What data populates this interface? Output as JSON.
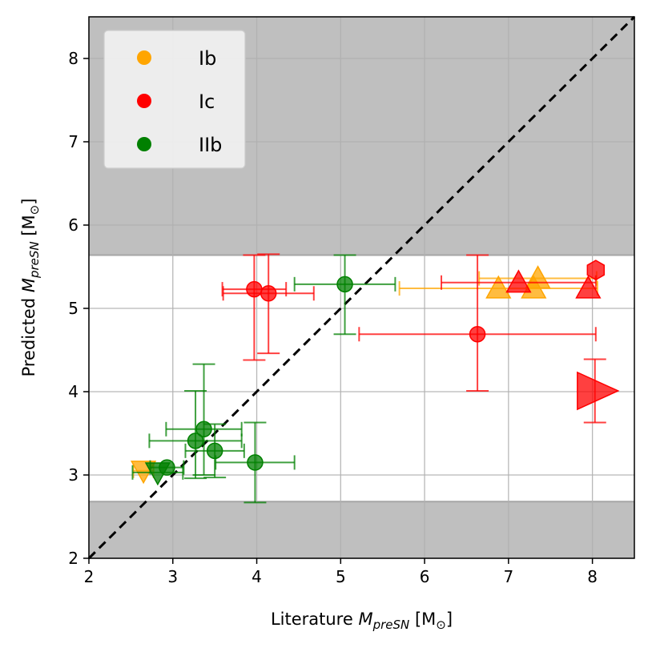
{
  "chart_data": {
    "type": "scatter",
    "title": "",
    "xlabel": {
      "prefix": "Literature ",
      "symbol": "M",
      "sub": "preSN",
      "unit": " [M",
      "unit_sub": "⊙",
      "unit_close": "]"
    },
    "ylabel": {
      "prefix": "Predicted ",
      "symbol": "M",
      "sub": "preSN",
      "unit": " [M",
      "unit_sub": "⊙",
      "unit_close": "]"
    },
    "xlim": [
      2,
      8.5
    ],
    "ylim": [
      2,
      8.5
    ],
    "xticks": [
      "2",
      "3",
      "4",
      "5",
      "6",
      "7",
      "8"
    ],
    "yticks": [
      "2",
      "3",
      "4",
      "5",
      "6",
      "7",
      "8"
    ],
    "grid": true,
    "legend_position": "top-left",
    "excluded_bands": [
      [
        2.0,
        2.68
      ],
      [
        5.64,
        8.5
      ]
    ],
    "identity_line": true,
    "series": [
      {
        "name": "Ib",
        "color": "#FFA500",
        "points": [
          {
            "x": 2.65,
            "y": 3.05,
            "marker": "triangle-down",
            "xerr": [
              0.12,
              0.12
            ],
            "yerr": [
              0,
              0
            ]
          },
          {
            "x": 6.88,
            "y": 5.24,
            "marker": "triangle-up",
            "xerr": [
              1.18,
              1.18
            ],
            "yerr": [
              0,
              0
            ]
          },
          {
            "x": 7.35,
            "y": 5.36,
            "marker": "triangle-up",
            "xerr": [
              0.7,
              0.7
            ],
            "yerr": [
              0,
              0
            ]
          },
          {
            "x": 7.3,
            "y": 5.24,
            "marker": "triangle-up",
            "xerr": [
              0,
              0
            ],
            "yerr": [
              0,
              0
            ]
          }
        ]
      },
      {
        "name": "Ic",
        "color": "#FF0000",
        "points": [
          {
            "x": 3.97,
            "y": 5.23,
            "marker": "circle",
            "xerr": [
              0.38,
              0.38
            ],
            "yerr": [
              0.85,
              0.41
            ]
          },
          {
            "x": 4.14,
            "y": 5.18,
            "marker": "circle",
            "xerr": [
              0.54,
              0.54
            ],
            "yerr": [
              0.72,
              0.47
            ]
          },
          {
            "x": 6.63,
            "y": 4.69,
            "marker": "circle",
            "xerr": [
              1.41,
              1.41
            ],
            "yerr": [
              0.68,
              0.95
            ]
          },
          {
            "x": 7.12,
            "y": 5.31,
            "marker": "triangle-up",
            "xerr": [
              0.92,
              0.92
            ],
            "yerr": [
              0,
              0
            ]
          },
          {
            "x": 7.95,
            "y": 5.24,
            "marker": "triangle-up",
            "xerr": [
              0,
              0
            ],
            "yerr": [
              0,
              0
            ]
          },
          {
            "x": 8.04,
            "y": 5.46,
            "marker": "hexagon",
            "xerr": [
              0,
              0
            ],
            "yerr": [
              0,
              0
            ]
          },
          {
            "x": 8.03,
            "y": 4.01,
            "marker": "triangle-right",
            "xerr": [
              0,
              0
            ],
            "yerr": [
              0.38,
              0.38
            ]
          }
        ]
      },
      {
        "name": "IIb",
        "color": "#008000",
        "points": [
          {
            "x": 2.82,
            "y": 3.03,
            "marker": "triangle-down",
            "xerr": [
              0.3,
              0.3
            ],
            "yerr": [
              0,
              0
            ]
          },
          {
            "x": 2.93,
            "y": 3.09,
            "marker": "circle",
            "xerr": [
              0.2,
              0.2
            ],
            "yerr": [
              0.0,
              0.0
            ]
          },
          {
            "x": 3.27,
            "y": 3.41,
            "marker": "circle",
            "xerr": [
              0.55,
              0.55
            ],
            "yerr": [
              0.45,
              0.6
            ]
          },
          {
            "x": 3.37,
            "y": 3.55,
            "marker": "circle",
            "xerr": [
              0.45,
              0.45
            ],
            "yerr": [
              0.55,
              0.78
            ]
          },
          {
            "x": 3.5,
            "y": 3.29,
            "marker": "circle",
            "xerr": [
              0.35,
              0.35
            ],
            "yerr": [
              0.32,
              0.32
            ]
          },
          {
            "x": 3.98,
            "y": 3.15,
            "marker": "circle",
            "xerr": [
              0.47,
              0.47
            ],
            "yerr": [
              0.48,
              0.48
            ]
          },
          {
            "x": 5.05,
            "y": 5.29,
            "marker": "circle",
            "xerr": [
              0.6,
              0.6
            ],
            "yerr": [
              0.6,
              0.35
            ]
          }
        ]
      }
    ]
  }
}
